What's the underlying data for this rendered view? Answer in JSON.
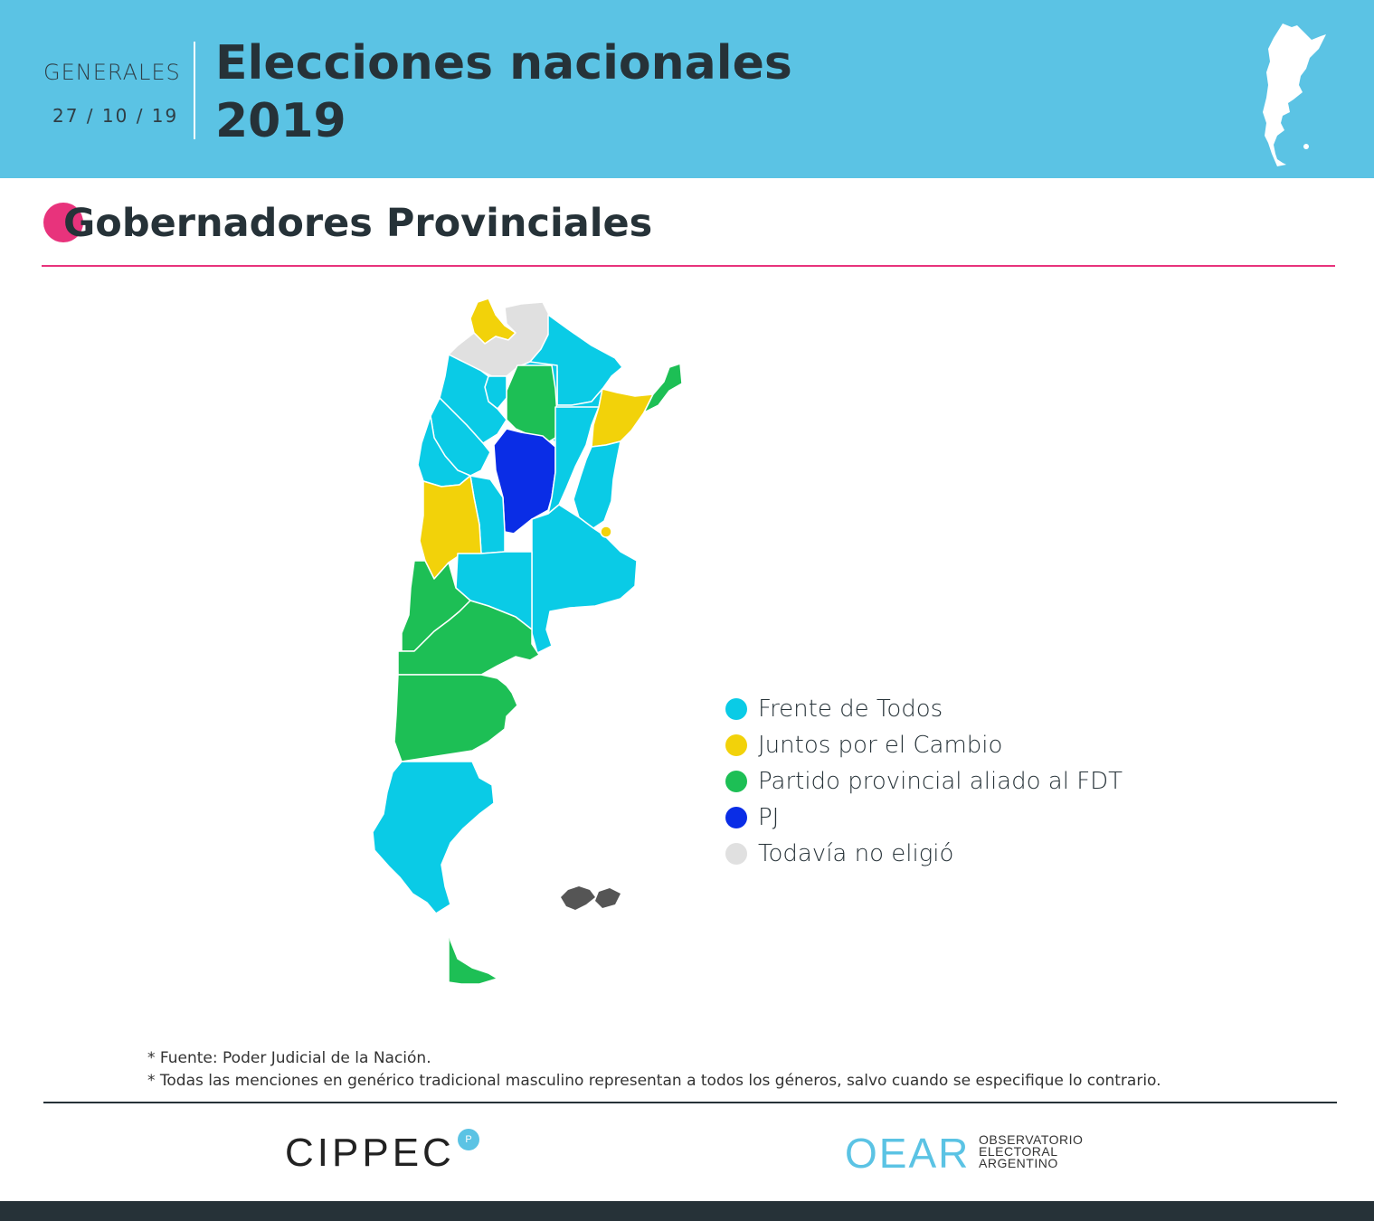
{
  "header": {
    "kicker": "GENERALES",
    "date": "27 / 10 / 19",
    "title_line1": "Elecciones nacionales",
    "title_line2": "2019"
  },
  "section": {
    "title": "Gobernadores Provinciales",
    "accent_color": "#e8337c"
  },
  "legend": [
    {
      "label": "Frente de Todos",
      "color": "#0acbe6"
    },
    {
      "label": "Juntos por el Cambio",
      "color": "#f2d20a"
    },
    {
      "label": "Partido provincial aliado al FDT",
      "color": "#1dbf55"
    },
    {
      "label": "PJ",
      "color": "#0a2de6"
    },
    {
      "label": "Todavía no eligió",
      "color": "#e0e0e0"
    }
  ],
  "notes": {
    "line1": "* Fuente: Poder Judicial de la Nación.",
    "line2": "* Todas las menciones en genérico tradicional masculino representan a todos los géneros, salvo cuando se especifique lo contrario."
  },
  "footer": {
    "logo1": "CIPPEC",
    "logo1_mark": "P",
    "logo2": "OEAR",
    "logo2_sub1": "OBSERVATORIO",
    "logo2_sub2": "ELECTORAL",
    "logo2_sub3": "ARGENTINO"
  },
  "colors": {
    "header_bg": "#5bc3e4",
    "dark": "#263238"
  }
}
